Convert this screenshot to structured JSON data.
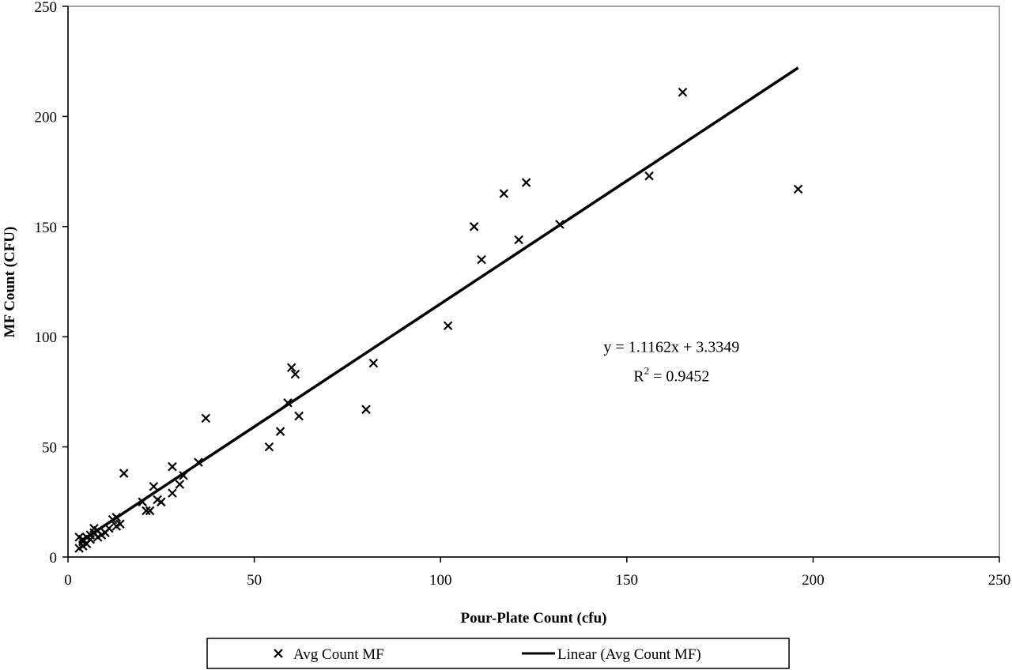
{
  "chart_data": {
    "type": "scatter",
    "xlabel": "Pour-Plate Count (cfu)",
    "ylabel": "MF Count (CFU)",
    "xlim": [
      0,
      250
    ],
    "ylim": [
      0,
      250
    ],
    "x_ticks": [
      "0",
      "50",
      "100",
      "150",
      "200",
      "250"
    ],
    "y_ticks": [
      "0",
      "50",
      "100",
      "150",
      "200",
      "250"
    ],
    "grid": false,
    "legend_position": "bottom",
    "series": [
      {
        "name": "Avg Count MF",
        "marker": "x",
        "color": "#000000",
        "points": [
          [
            3,
            9
          ],
          [
            3,
            4
          ],
          [
            4,
            7
          ],
          [
            4,
            5
          ],
          [
            4,
            8
          ],
          [
            5,
            6
          ],
          [
            5,
            9
          ],
          [
            6,
            10
          ],
          [
            6,
            8
          ],
          [
            7,
            13
          ],
          [
            7,
            11
          ],
          [
            8,
            9
          ],
          [
            8,
            12
          ],
          [
            9,
            10
          ],
          [
            10,
            11
          ],
          [
            11,
            13
          ],
          [
            12,
            17
          ],
          [
            13,
            14
          ],
          [
            13,
            18
          ],
          [
            14,
            15
          ],
          [
            15,
            38
          ],
          [
            20,
            25
          ],
          [
            21,
            21
          ],
          [
            22,
            21
          ],
          [
            23,
            32
          ],
          [
            24,
            26
          ],
          [
            25,
            25
          ],
          [
            28,
            41
          ],
          [
            28,
            29
          ],
          [
            30,
            33
          ],
          [
            31,
            37
          ],
          [
            35,
            43
          ],
          [
            37,
            63
          ],
          [
            54,
            50
          ],
          [
            57,
            57
          ],
          [
            59,
            70
          ],
          [
            60,
            86
          ],
          [
            61,
            83
          ],
          [
            62,
            64
          ],
          [
            80,
            67
          ],
          [
            82,
            88
          ],
          [
            102,
            105
          ],
          [
            109,
            150
          ],
          [
            111,
            135
          ],
          [
            117,
            165
          ],
          [
            121,
            144
          ],
          [
            123,
            170
          ],
          [
            132,
            151
          ],
          [
            156,
            173
          ],
          [
            165,
            211
          ],
          [
            196,
            167
          ]
        ]
      },
      {
        "name": "Linear (Avg Count MF)",
        "type": "line",
        "color": "#000000",
        "slope": 1.1162,
        "intercept": 3.3349,
        "x_range": [
          3,
          196
        ]
      }
    ],
    "annotation": {
      "equation": "y = 1.1162x + 3.3349",
      "r2_prefix": "R",
      "r2_sup": "2",
      "r2_value": " = 0.9452",
      "anchor": [
        162,
        93
      ]
    }
  },
  "legend": {
    "scatter_label": "Avg Count MF",
    "line_label": "Linear (Avg Count MF)"
  }
}
